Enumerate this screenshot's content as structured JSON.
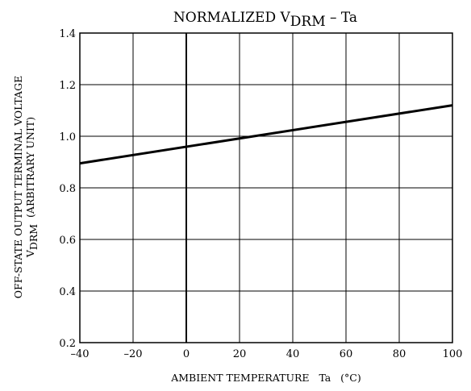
{
  "chart_data": {
    "type": "line",
    "title": {
      "prefix": "NORMALIZED V",
      "subscript": "DRM",
      "suffix": " – Ta"
    },
    "xlabel": "AMBIENT TEMPERATURE   Ta   (°C)",
    "ylabel": {
      "line1": "OFF-STATE OUTPUT TERMINAL VOLTAGE",
      "line2_prefix": "V",
      "line2_subscript": "DRM",
      "line2_suffix": "  (ARBITRARY UNIT)"
    },
    "xlim": [
      -40,
      100
    ],
    "ylim": [
      0.2,
      1.4
    ],
    "xticks": [
      -40,
      -20,
      0,
      20,
      40,
      60,
      80,
      100
    ],
    "xtick_labels": [
      "–40",
      "–20",
      "0",
      "20",
      "40",
      "60",
      "80",
      "100"
    ],
    "yticks": [
      0.2,
      0.4,
      0.6,
      0.8,
      1.0,
      1.2,
      1.4
    ],
    "ytick_labels": [
      "0.2",
      "0.4",
      "0.6",
      "0.8",
      "1.0",
      "1.2",
      "1.4"
    ],
    "grid": true,
    "series": [
      {
        "x": [
          -40,
          100
        ],
        "y": [
          0.895,
          1.12
        ]
      }
    ]
  }
}
